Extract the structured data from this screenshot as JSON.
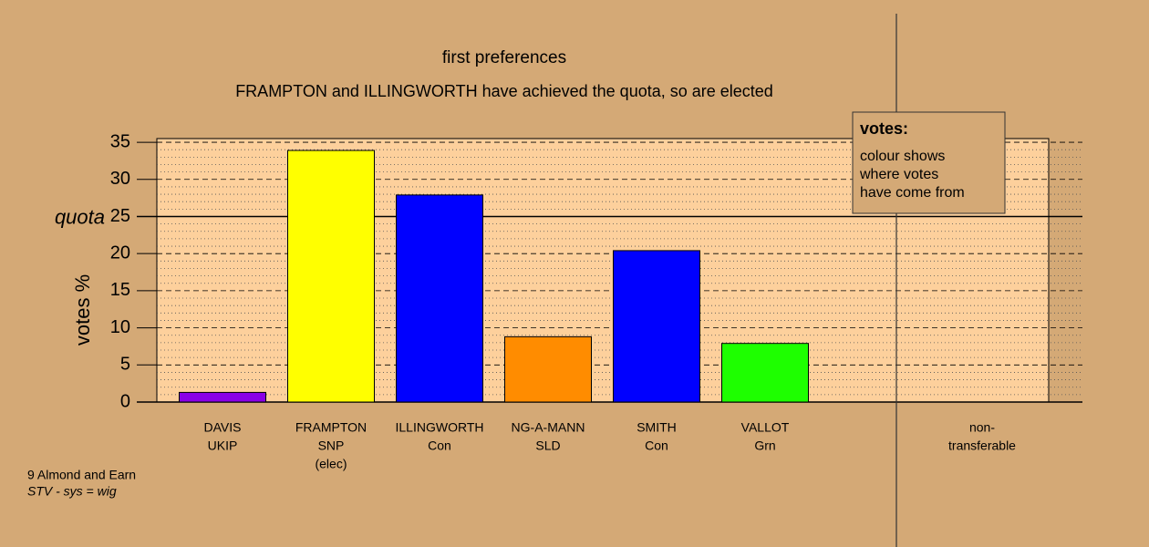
{
  "chart_data": {
    "type": "bar",
    "title": "first preferences",
    "subtitle": "FRAMPTON and ILLINGWORTH have achieved the quota, so are elected",
    "y_label": "votes %",
    "categories": [
      [
        "DAVIS",
        "UKIP"
      ],
      [
        "FRAMPTON",
        "SNP",
        "(elec)"
      ],
      [
        "ILLINGWORTH",
        "Con"
      ],
      [
        "NG-A-MANN",
        "SLD"
      ],
      [
        "SMITH",
        "Con"
      ],
      [
        "VALLOT",
        "Grn"
      ],
      [
        "non-",
        "transferable"
      ]
    ],
    "series": [
      {
        "name": "votes",
        "values": [
          1.3,
          33.9,
          27.9,
          8.8,
          20.4,
          7.9,
          0
        ],
        "colors": [
          "#8a00e6",
          "#ffff00",
          "#0000ff",
          "#ff8c00",
          "#0000ff",
          "#1eff00",
          "#0000ff"
        ]
      }
    ],
    "ylim": [
      0,
      35.5
    ],
    "yticks": [
      0,
      5,
      10,
      15,
      20,
      25,
      30,
      35
    ],
    "minor_yticks": [
      1,
      2,
      3,
      4,
      6,
      7,
      8,
      9,
      11,
      12,
      13,
      14,
      16,
      17,
      18,
      19,
      21,
      22,
      23,
      24,
      26,
      27,
      28,
      29,
      31,
      32,
      33,
      34
    ],
    "quota": {
      "value": 25,
      "label": "quota"
    },
    "legend": {
      "title": "votes:",
      "lines": [
        "colour shows",
        "where votes",
        "have come from"
      ]
    },
    "footer": [
      "9 Almond and Earn",
      "STV - sys = wig"
    ],
    "grid": true
  }
}
